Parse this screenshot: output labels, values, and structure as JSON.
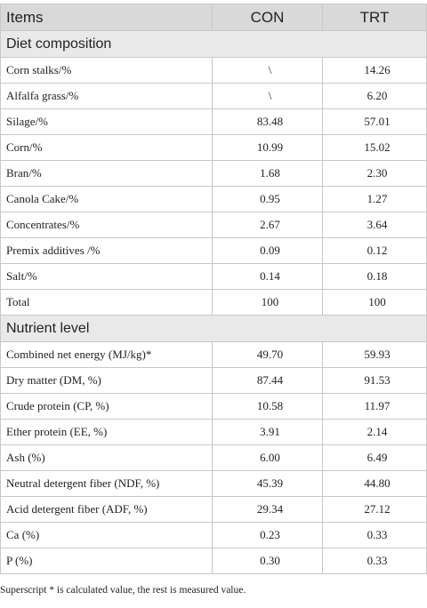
{
  "table": {
    "headers": [
      "Items",
      "CON",
      "TRT"
    ],
    "sections": [
      {
        "title": "Diet composition",
        "rows": [
          [
            "Corn stalks/%",
            "\\",
            "14.26"
          ],
          [
            "Alfalfa grass/%",
            "\\",
            "6.20"
          ],
          [
            "Silage/%",
            "83.48",
            "57.01"
          ],
          [
            "Corn/%",
            "10.99",
            "15.02"
          ],
          [
            "Bran/%",
            "1.68",
            "2.30"
          ],
          [
            "Canola Cake/%",
            "0.95",
            "1.27"
          ],
          [
            "Concentrates/%",
            "2.67",
            "3.64"
          ],
          [
            "Premix additives /%",
            "0.09",
            "0.12"
          ],
          [
            "Salt/%",
            "0.14",
            "0.18"
          ],
          [
            "Total",
            "100",
            "100"
          ]
        ]
      },
      {
        "title": "Nutrient level",
        "rows": [
          [
            "Combined net energy (MJ/kg)*",
            "49.70",
            "59.93"
          ],
          [
            "Dry matter (DM, %)",
            "87.44",
            "91.53"
          ],
          [
            "Crude protein (CP, %)",
            "10.58",
            "11.97"
          ],
          [
            "Ether protein (EE, %)",
            "3.91",
            "2.14"
          ],
          [
            "Ash (%)",
            "6.00",
            "6.49"
          ],
          [
            "Neutral detergent fiber (NDF, %)",
            "45.39",
            "44.80"
          ],
          [
            "Acid detergent fiber (ADF, %)",
            "29.34",
            "27.12"
          ],
          [
            "Ca (%)",
            "0.23",
            "0.33"
          ],
          [
            "P (%)",
            "0.30",
            "0.33"
          ]
        ]
      }
    ]
  },
  "footnote": "Superscript * is calculated value, the rest is measured value."
}
